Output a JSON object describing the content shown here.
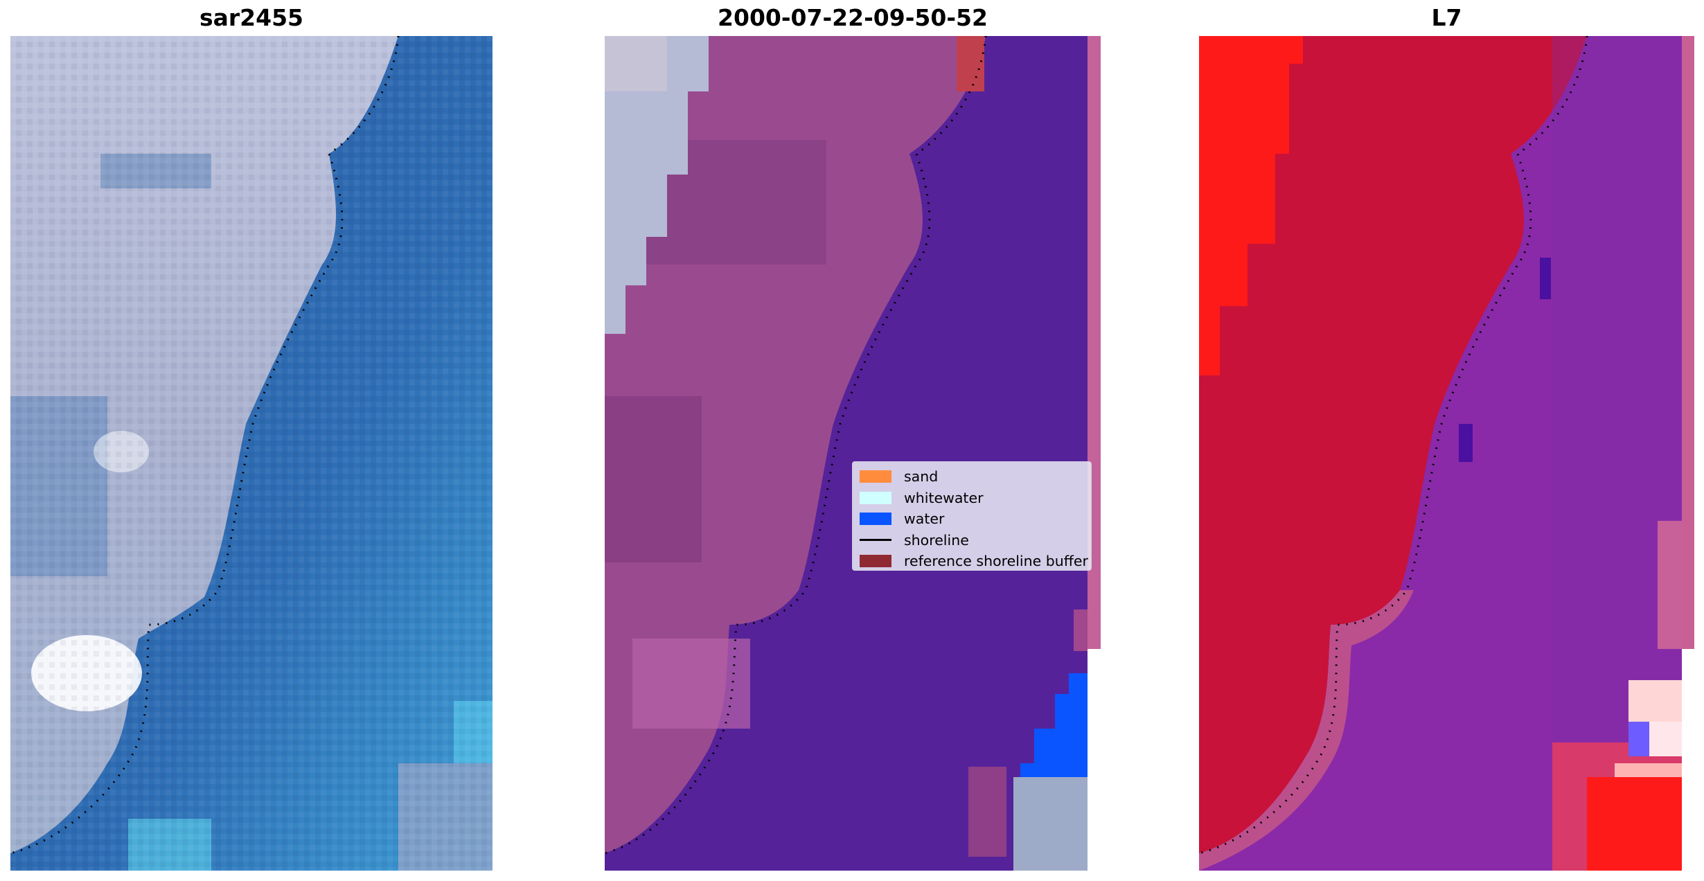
{
  "panels": [
    {
      "id": "rgb",
      "title": "sar2455"
    },
    {
      "id": "classified",
      "title": "2000-07-22-09-50-52"
    },
    {
      "id": "mndwi",
      "title": "L7"
    }
  ],
  "legend": {
    "items": [
      {
        "label": "sand",
        "color": "#ff8c3d",
        "kind": "patch"
      },
      {
        "label": "whitewater",
        "color": "#cfffff",
        "kind": "patch"
      },
      {
        "label": "water",
        "color": "#0a55ff",
        "kind": "patch"
      },
      {
        "label": "shoreline",
        "color": "#000000",
        "kind": "line"
      },
      {
        "label": "reference shoreline buffer",
        "color": "#8f2a33",
        "kind": "patch"
      }
    ]
  },
  "colors": {
    "sea_deep": "#2c5ea6",
    "sea_shallow": "#3b93cf",
    "land_rgb": "#b3b8d4",
    "classified_water": "#55229a",
    "classified_land": "#9a4b8f",
    "index_land": "#c8123a",
    "index_water": "#8a2aa8",
    "index_extreme": "#ff1a1a"
  }
}
